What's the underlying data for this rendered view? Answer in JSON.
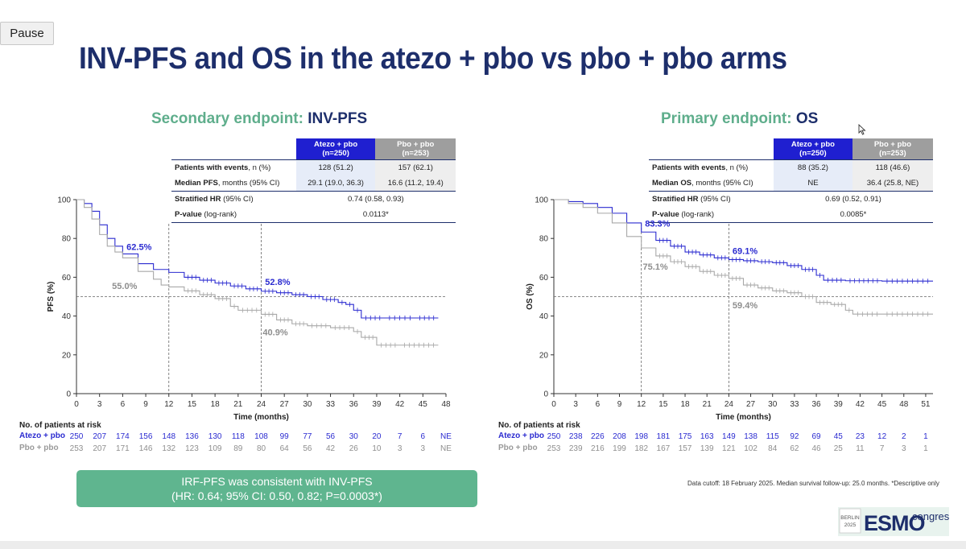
{
  "controls": {
    "pause_label": "Pause"
  },
  "slide": {
    "title": "INV-PFS and OS in the atezo + pbo vs pbo + pbo arms"
  },
  "left_panel": {
    "endpoint_label": "Secondary endpoint:",
    "endpoint_value": "INV-PFS",
    "table": {
      "col1_line1": "Atezo + pbo",
      "col1_line2": "(n=250)",
      "col2_line1": "Pbo + pbo",
      "col2_line2": "(n=253)",
      "r1_bold": "Patients with events",
      "r1_rest": ", n (%)",
      "r1_c1": "128 (51.2)",
      "r1_c2": "157 (62.1)",
      "r2_bold": "Median PFS",
      "r2_rest": ", months (95% CI)",
      "r2_c1": "29.1 (19.0, 36.3)",
      "r2_c2": "16.6 (11.2, 19.4)",
      "r3_bold": "Stratified HR",
      "r3_rest": " (95% CI)",
      "r3_val": "0.74 (0.58, 0.93)",
      "r4_bold": "P-value",
      "r4_rest": " (log-rank)",
      "r4_val": "0.0113*"
    },
    "risk": {
      "title": "No. of patients at risk",
      "arm1_label": "Atezo + pbo",
      "arm2_label": "Pbo + pbo",
      "arm1": [
        "250",
        "207",
        "174",
        "156",
        "148",
        "136",
        "130",
        "118",
        "108",
        "99",
        "77",
        "56",
        "30",
        "20",
        "7",
        "6",
        "NE"
      ],
      "arm2": [
        "253",
        "207",
        "171",
        "146",
        "132",
        "123",
        "109",
        "89",
        "80",
        "64",
        "56",
        "42",
        "26",
        "10",
        "3",
        "3",
        "NE"
      ]
    },
    "note_line1": "IRF-PFS was consistent with INV-PFS",
    "note_line2": "(HR: 0.64; 95% CI: 0.50, 0.82; P=0.0003*)"
  },
  "right_panel": {
    "endpoint_label": "Primary endpoint:",
    "endpoint_value": "OS",
    "table": {
      "col1_line1": "Atezo + pbo",
      "col1_line2": "(n=250)",
      "col2_line1": "Pbo + pbo",
      "col2_line2": "(n=253)",
      "r1_bold": "Patients with events",
      "r1_rest": ", n (%)",
      "r1_c1": "88 (35.2)",
      "r1_c2": "118 (46.6)",
      "r2_bold": "Median OS",
      "r2_rest": ", months (95% CI)",
      "r2_c1": "NE",
      "r2_c2": "36.4 (25.8, NE)",
      "r3_bold": "Stratified HR",
      "r3_rest": " (95% CI)",
      "r3_val": "0.69 (0.52, 0.91)",
      "r4_bold": "P-value",
      "r4_rest": " (log-rank)",
      "r4_val": "0.0085*"
    },
    "risk": {
      "title": "No. of patients at risk",
      "arm1_label": "Atezo + pbo",
      "arm2_label": "Pbo + pbo",
      "arm1": [
        "250",
        "238",
        "226",
        "208",
        "198",
        "181",
        "175",
        "163",
        "149",
        "138",
        "115",
        "92",
        "69",
        "45",
        "23",
        "12",
        "2",
        "1"
      ],
      "arm2": [
        "253",
        "239",
        "216",
        "199",
        "182",
        "167",
        "157",
        "139",
        "121",
        "102",
        "84",
        "62",
        "46",
        "25",
        "11",
        "7",
        "3",
        "1"
      ]
    },
    "footnote": "Data cutoff: 18 February 2025. Median survival follow-up: 25.0 months. *Descriptive only"
  },
  "logo": {
    "line1": "BERLIN",
    "line2": "2025",
    "brand": "ESMO",
    "suffix": "congress"
  },
  "colors": {
    "atezo": "#2b2bd0",
    "pbo": "#a8a8a8",
    "title": "#1d2e6b",
    "accent_green": "#5fae8c"
  },
  "chart_data": [
    {
      "type": "line",
      "ylabel": "PFS (%)",
      "xlabel": "Time (months)",
      "xlim": [
        0,
        48
      ],
      "ylim": [
        0,
        100
      ],
      "xticks": [
        0,
        3,
        6,
        9,
        12,
        15,
        18,
        21,
        24,
        27,
        30,
        33,
        36,
        39,
        42,
        45,
        48
      ],
      "yticks": [
        0,
        20,
        40,
        60,
        80,
        100
      ],
      "reference_y": 50,
      "reference_x": [
        12,
        24
      ],
      "series": [
        {
          "name": "Atezo + pbo",
          "color": "#2b2bd0",
          "points": [
            [
              0,
              100
            ],
            [
              1,
              98
            ],
            [
              2,
              94
            ],
            [
              3,
              87
            ],
            [
              4,
              80
            ],
            [
              5,
              76
            ],
            [
              6,
              72
            ],
            [
              8,
              67
            ],
            [
              10,
              64
            ],
            [
              12,
              62.5
            ],
            [
              14,
              60
            ],
            [
              16,
              58.5
            ],
            [
              18,
              57
            ],
            [
              20,
              55.5
            ],
            [
              22,
              54
            ],
            [
              24,
              52.8
            ],
            [
              26,
              52
            ],
            [
              28,
              51
            ],
            [
              30,
              50
            ],
            [
              32,
              48.5
            ],
            [
              34,
              47
            ],
            [
              35,
              46
            ],
            [
              36,
              43
            ],
            [
              37,
              39
            ],
            [
              40,
              39
            ],
            [
              44,
              39
            ],
            [
              47,
              39
            ]
          ]
        },
        {
          "name": "Pbo + pbo",
          "color": "#a8a8a8",
          "points": [
            [
              0,
              100
            ],
            [
              1,
              96
            ],
            [
              2,
              90
            ],
            [
              3,
              82
            ],
            [
              4,
              76
            ],
            [
              5,
              73
            ],
            [
              6,
              70
            ],
            [
              8,
              63
            ],
            [
              10,
              59
            ],
            [
              11,
              56
            ],
            [
              12,
              55
            ],
            [
              14,
              53
            ],
            [
              16,
              51
            ],
            [
              18,
              49
            ],
            [
              20,
              45
            ],
            [
              21,
              43
            ],
            [
              24,
              40.9
            ],
            [
              26,
              38
            ],
            [
              28,
              36
            ],
            [
              30,
              35
            ],
            [
              33,
              34
            ],
            [
              36,
              32
            ],
            [
              37,
              29
            ],
            [
              39,
              25
            ],
            [
              42,
              25
            ],
            [
              47,
              25
            ]
          ]
        }
      ],
      "annotations": [
        {
          "text": "62.5%",
          "x": 6.5,
          "y": 74,
          "series": "Atezo + pbo"
        },
        {
          "text": "55.0%",
          "x": 6.5,
          "y": 54,
          "series": "Pbo + pbo"
        },
        {
          "text": "52.8%",
          "x": 24.5,
          "y": 56,
          "series": "Atezo + pbo"
        },
        {
          "text": "40.9%",
          "x": 24.2,
          "y": 30,
          "series": "Pbo + pbo"
        }
      ]
    },
    {
      "type": "line",
      "ylabel": "OS (%)",
      "xlabel": "Time (months)",
      "xlim": [
        0,
        52
      ],
      "ylim": [
        0,
        100
      ],
      "xticks": [
        0,
        3,
        6,
        9,
        12,
        15,
        18,
        21,
        24,
        27,
        30,
        33,
        36,
        39,
        42,
        45,
        48,
        51
      ],
      "yticks": [
        0,
        20,
        40,
        60,
        80,
        100
      ],
      "reference_y": 50,
      "reference_x": [
        12,
        24
      ],
      "series": [
        {
          "name": "Atezo + pbo",
          "color": "#2b2bd0",
          "points": [
            [
              0,
              100
            ],
            [
              2,
              99
            ],
            [
              4,
              98
            ],
            [
              6,
              96
            ],
            [
              8,
              93
            ],
            [
              10,
              88
            ],
            [
              12,
              83.3
            ],
            [
              14,
              79
            ],
            [
              16,
              76
            ],
            [
              18,
              73
            ],
            [
              20,
              71.5
            ],
            [
              22,
              70
            ],
            [
              24,
              69.1
            ],
            [
              26,
              68.5
            ],
            [
              28,
              68
            ],
            [
              30,
              67.5
            ],
            [
              32,
              66
            ],
            [
              34,
              64
            ],
            [
              36,
              61
            ],
            [
              37,
              58.5
            ],
            [
              40,
              58.2
            ],
            [
              45,
              58
            ],
            [
              52,
              58
            ]
          ]
        },
        {
          "name": "Pbo + pbo",
          "color": "#a8a8a8",
          "points": [
            [
              0,
              100
            ],
            [
              2,
              98
            ],
            [
              4,
              96
            ],
            [
              6,
              93
            ],
            [
              8,
              88
            ],
            [
              10,
              81
            ],
            [
              12,
              75.1
            ],
            [
              14,
              71
            ],
            [
              16,
              68
            ],
            [
              18,
              65.5
            ],
            [
              20,
              63
            ],
            [
              22,
              61
            ],
            [
              24,
              59.4
            ],
            [
              26,
              56
            ],
            [
              28,
              54.5
            ],
            [
              30,
              53
            ],
            [
              32,
              52
            ],
            [
              34,
              50
            ],
            [
              36,
              47
            ],
            [
              38,
              46
            ],
            [
              40,
              43
            ],
            [
              41,
              41
            ],
            [
              45,
              41
            ],
            [
              52,
              41
            ]
          ]
        }
      ],
      "annotations": [
        {
          "text": "83.3%",
          "x": 12.5,
          "y": 86,
          "series": "Atezo + pbo"
        },
        {
          "text": "75.1%",
          "x": 12.2,
          "y": 64,
          "series": "Pbo + pbo"
        },
        {
          "text": "69.1%",
          "x": 24.5,
          "y": 72,
          "series": "Atezo + pbo"
        },
        {
          "text": "59.4%",
          "x": 24.5,
          "y": 44,
          "series": "Pbo + pbo"
        }
      ]
    }
  ]
}
